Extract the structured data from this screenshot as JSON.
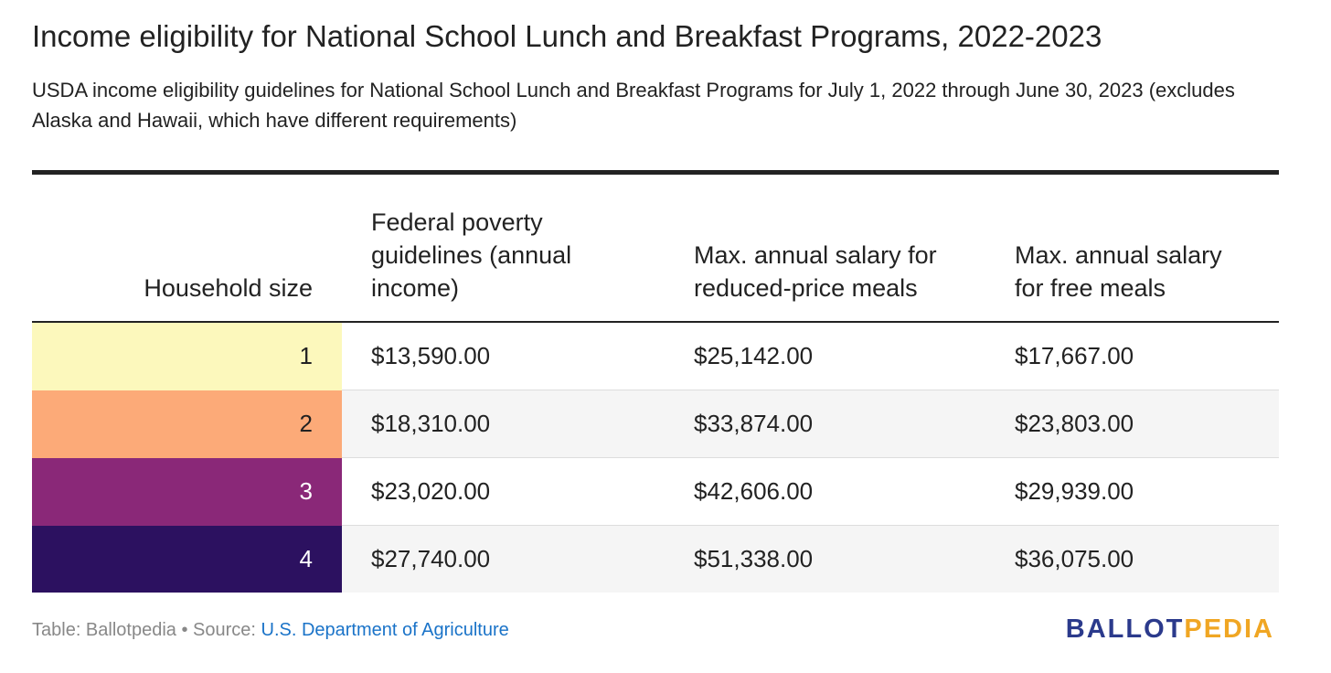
{
  "title": "Income eligibility for National School Lunch and Breakfast Programs, 2022-2023",
  "subtitle": "USDA income eligibility guidelines for National School Lunch and Breakfast Programs for July 1, 2022 through June 30, 2023 (excludes Alaska and Hawaii, which have different requirements)",
  "chart_data": {
    "type": "table",
    "columns": [
      "Household size",
      "Federal poverty guidelines (annual income)",
      "Max. annual salary for reduced-price meals",
      "Max. annual salary for free meals"
    ],
    "rows": [
      {
        "household_size": "1",
        "poverty": "$13,590.00",
        "reduced": "$25,142.00",
        "free": "$17,667.00",
        "color": "#fcf8bc",
        "text_color": "#222222"
      },
      {
        "household_size": "2",
        "poverty": "$18,310.00",
        "reduced": "$33,874.00",
        "free": "$23,803.00",
        "color": "#fcaa78",
        "text_color": "#222222"
      },
      {
        "household_size": "3",
        "poverty": "$23,020.00",
        "reduced": "$42,606.00",
        "free": "$29,939.00",
        "color": "#8a2878",
        "text_color": "#ffffff"
      },
      {
        "household_size": "4",
        "poverty": "$27,740.00",
        "reduced": "$51,338.00",
        "free": "$36,075.00",
        "color": "#2c1160",
        "text_color": "#ffffff"
      }
    ]
  },
  "footer": {
    "prefix": "Table: Ballotpedia • Source: ",
    "source_link": "U.S. Department of Agriculture"
  },
  "logo": {
    "part1": "BALLOT",
    "part2": "PEDIA",
    "color1": "#2b3a8c",
    "color2": "#f0a623"
  }
}
